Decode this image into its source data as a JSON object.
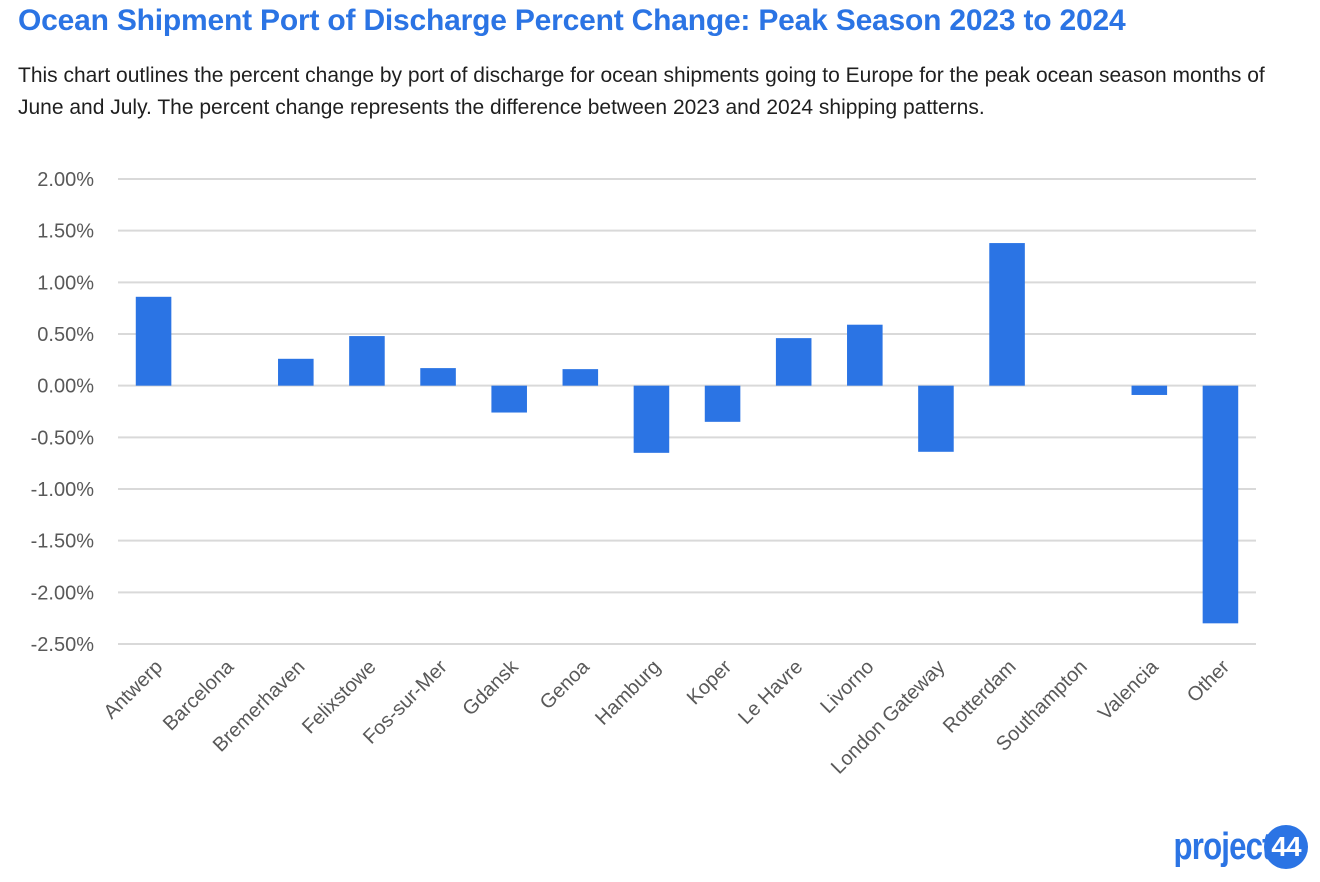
{
  "title": "Ocean Shipment Port of Discharge Percent Change: Peak Season 2023 to 2024",
  "subtitle": "This chart outlines the percent change by port of discharge for ocean shipments going to Europe for the peak ocean season months of June and July. The percent change represents the difference between 2023 and 2024 shipping patterns.",
  "logo": {
    "text": "project",
    "badge": "44"
  },
  "colors": {
    "bar": "#2b74e4",
    "title": "#2b74e4",
    "grid": "#d9d9d9"
  },
  "chart_data": {
    "type": "bar",
    "categories": [
      "Antwerp",
      "Barcelona",
      "Bremerhaven",
      "Felixstowe",
      "Fos-sur-Mer",
      "Gdansk",
      "Genoa",
      "Hamburg",
      "Koper",
      "Le Havre",
      "Livorno",
      "London Gateway",
      "Rotterdam",
      "Southampton",
      "Valencia",
      "Other"
    ],
    "values": [
      0.86,
      0.0,
      0.26,
      0.48,
      0.17,
      -0.26,
      0.16,
      -0.65,
      -0.35,
      0.46,
      0.59,
      -0.64,
      1.38,
      0.0,
      -0.09,
      -2.3
    ],
    "unit": "percent",
    "yticks": [
      "2.00%",
      "1.50%",
      "1.00%",
      "0.50%",
      "0.00%",
      "-0.50%",
      "-1.00%",
      "-1.50%",
      "-2.00%",
      "-2.50%"
    ],
    "ylim": [
      -2.5,
      2.0
    ],
    "grid": true,
    "legend": "none",
    "xlabel": "",
    "ylabel": ""
  }
}
